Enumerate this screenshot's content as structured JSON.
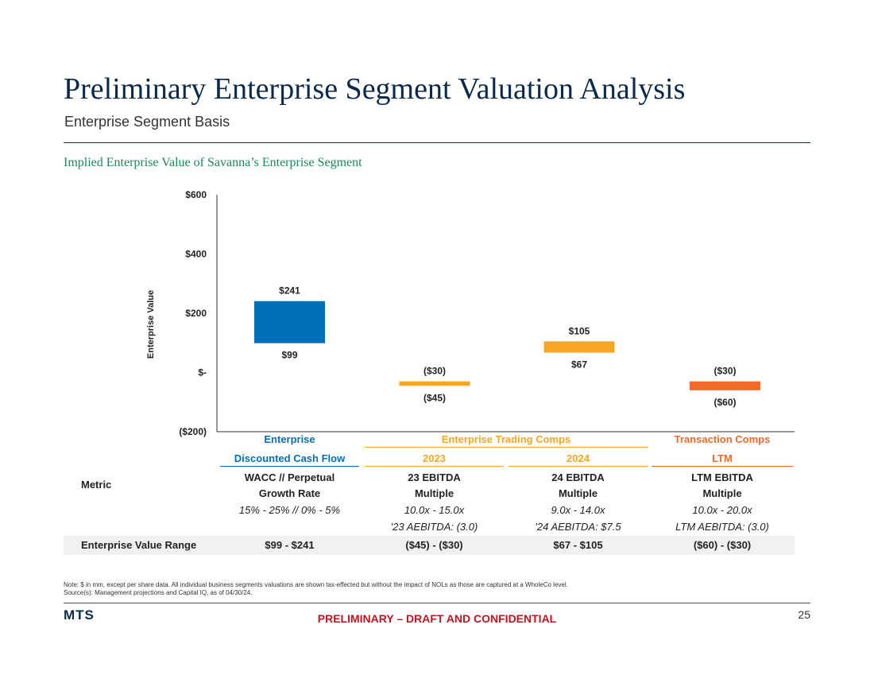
{
  "header": {
    "title": "Preliminary Enterprise Segment Valuation Analysis",
    "subtitle": "Enterprise Segment Basis",
    "section_title": "Implied Enterprise Value of Savanna’s Enterprise Segment"
  },
  "colors": {
    "dcf": "#0070b8",
    "trading": "#f5a623",
    "transaction": "#f06a2a",
    "navy": "#0b2a4a",
    "green": "#1a8a5a",
    "red": "#c0161e"
  },
  "chart_data": {
    "type": "floating-bar",
    "ylabel": "Enterprise Value",
    "ylim": [
      -200,
      600
    ],
    "yticks": [
      {
        "value": 600,
        "label": "$600"
      },
      {
        "value": 400,
        "label": "$400"
      },
      {
        "value": 200,
        "label": "$200"
      },
      {
        "value": 0,
        "label": "$-"
      },
      {
        "value": -200,
        "label": "($200)"
      }
    ],
    "bars": [
      {
        "name": "Discounted Cash Flow",
        "low": 99,
        "high": 241,
        "low_label": "$99",
        "high_label": "$241",
        "color": "#0070b8"
      },
      {
        "name": "2023",
        "low": -45,
        "high": -30,
        "low_label": "($45)",
        "high_label": "($30)",
        "color": "#f5a623"
      },
      {
        "name": "2024",
        "low": 67,
        "high": 105,
        "low_label": "$67",
        "high_label": "$105",
        "color": "#f5a623"
      },
      {
        "name": "LTM",
        "low": -60,
        "high": -30,
        "low_label": "($60)",
        "high_label": "($30)",
        "color": "#f06a2a"
      }
    ]
  },
  "table": {
    "group_dcf": "Enterprise",
    "group_trading": "Enterprise Trading Comps",
    "group_transaction": "Transaction Comps",
    "col_dcf": "Discounted Cash Flow",
    "col_2023": "2023",
    "col_2024": "2024",
    "col_ltm": "LTM",
    "metric_label": "Metric",
    "metric_dcf_1": "WACC // Perpetual",
    "metric_dcf_2": "Growth Rate",
    "metric_dcf_3": "15% - 25% // 0% - 5%",
    "metric_2023_1": "23 EBITDA",
    "metric_2023_2": "Multiple",
    "metric_2023_3": "10.0x - 15.0x",
    "metric_2023_4": "'23 AEBITDA: (3.0)",
    "metric_2024_1": "24 EBITDA",
    "metric_2024_2": "Multiple",
    "metric_2024_3": "9.0x - 14.0x",
    "metric_2024_4": "'24 AEBITDA: $7.5",
    "metric_ltm_1": "LTM EBITDA",
    "metric_ltm_2": "Multiple",
    "metric_ltm_3": "10.0x - 20.0x",
    "metric_ltm_4": "LTM AEBITDA: (3.0)",
    "ev_label": "Enterprise Value Range",
    "ev_dcf": "$99 - $241",
    "ev_2023": "($45) - ($30)",
    "ev_2024": "$67 - $105",
    "ev_ltm": "($60) - ($30)"
  },
  "footer": {
    "note_1": "Note: $ in mm, except per share data. All individual business segments valuations are shown tax-effected but without the impact of NOLs as those are captured at a WholeCo level.",
    "note_2": "Source(s): Management projections and Capital IQ, as of 04/30/24.",
    "logo": "MTS",
    "confidential": "PRELIMINARY – DRAFT AND CONFIDENTIAL",
    "page_number": "25"
  }
}
